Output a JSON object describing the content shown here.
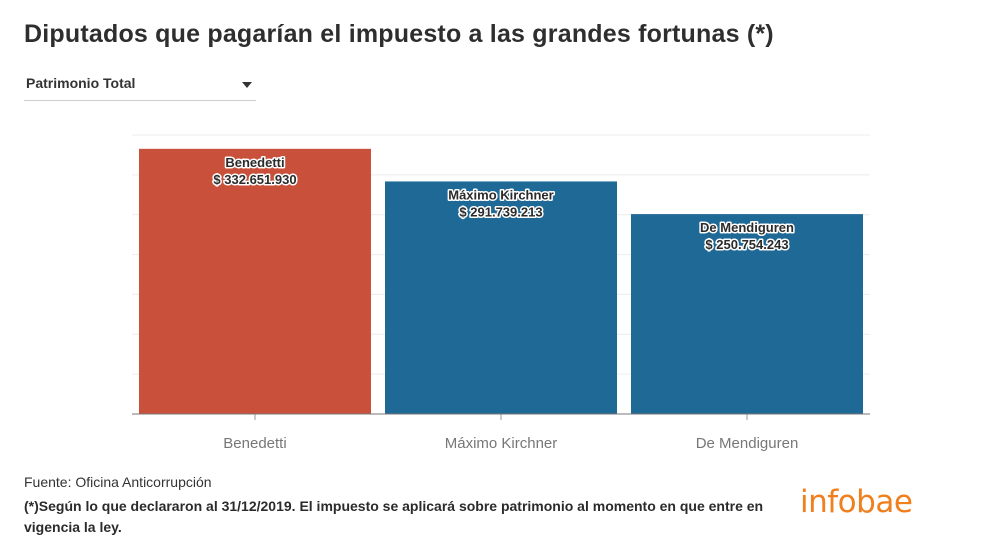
{
  "title": "Diputados que pagarían el impuesto a las grandes fortunas (*)",
  "selector": {
    "label": "Patrimonio Total"
  },
  "chart_data": {
    "type": "bar",
    "categories": [
      "Benedetti",
      "Máximo Kirchner",
      "De Mendiguren"
    ],
    "values": [
      332651930,
      291739213,
      250754243
    ],
    "value_labels": [
      "$ 332.651.930",
      "$ 291.739.213",
      "$ 250.754.243"
    ],
    "colors": [
      "#c9503a",
      "#1f6996",
      "#1f6996"
    ],
    "ylim": [
      0,
      350000000
    ],
    "grid": true,
    "title": "Diputados que pagarían el impuesto a las grandes fortunas (*)",
    "xlabel": "",
    "ylabel": ""
  },
  "footer": {
    "source": "Fuente: Oficina Anticorrupción",
    "note": "(*)Según lo que declararon al 31/12/2019. El impuesto se aplicará sobre patrimonio al momento en que entre en vigencia la ley.",
    "logo": "infobae"
  }
}
